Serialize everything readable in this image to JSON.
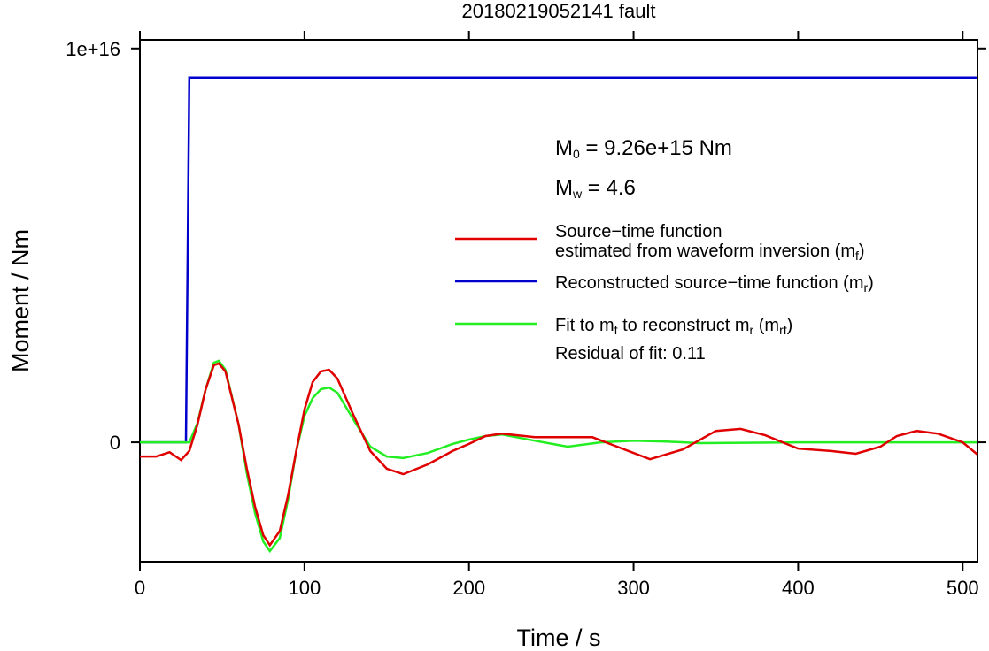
{
  "chart_data": {
    "type": "line",
    "title": "20180219052141 fault",
    "xlabel": "Time / s",
    "ylabel": "Moment / Nm",
    "xlim": [
      0,
      509
    ],
    "ylim": [
      -3030000000000000.0,
      1.022e+16
    ],
    "xticks": [
      0,
      100,
      200,
      300,
      400,
      500
    ],
    "yticks": [
      0,
      {
        "value": 1e+16,
        "label": "1e+16"
      }
    ],
    "annotations": [
      [
        "M",
        "0",
        " = 9.26e+15 Nm"
      ],
      [
        "M",
        "w",
        " = 4.6"
      ],
      [
        "Residual of fit: 0.11"
      ]
    ],
    "series": [
      {
        "name": [
          [
            "Source−time function"
          ],
          [
            "estimated from waveform inversion (m",
            "f",
            ")"
          ]
        ],
        "color": "#e00000",
        "x": [
          0,
          10,
          18,
          25,
          30,
          35,
          40,
          45,
          48,
          52,
          60,
          65,
          70,
          75,
          79,
          85,
          90,
          95,
          100,
          105,
          110,
          115,
          120,
          130,
          140,
          150,
          160,
          175,
          190,
          200,
          210,
          220,
          240,
          260,
          275,
          290,
          310,
          330,
          350,
          365,
          380,
          400,
          420,
          435,
          450,
          460,
          472,
          485,
          500,
          509
        ],
        "values": [
          -360000000000000.0,
          -360000000000000.0,
          -250000000000000.0,
          -450000000000000.0,
          -220000000000000.0,
          450000000000000.0,
          1350000000000000.0,
          1960000000000000.0,
          2000000000000000.0,
          1800000000000000.0,
          450000000000000.0,
          -670000000000000.0,
          -1640000000000000.0,
          -2360000000000000.0,
          -2610000000000000.0,
          -2250000000000000.0,
          -1350000000000000.0,
          -220000000000000.0,
          830000000000000.0,
          1530000000000000.0,
          1800000000000000.0,
          1840000000000000.0,
          1620000000000000.0,
          670000000000000.0,
          -220000000000000.0,
          -670000000000000.0,
          -810000000000000.0,
          -560000000000000.0,
          -220000000000000.0,
          -40000000000000.0,
          160000000000000.0,
          220000000000000.0,
          130000000000000.0,
          130000000000000.0,
          130000000000000.0,
          -110000000000000.0,
          -430000000000000.0,
          -180000000000000.0,
          290000000000000.0,
          340000000000000.0,
          180000000000000.0,
          -160000000000000.0,
          -220000000000000.0,
          -290000000000000.0,
          -110000000000000.0,
          160000000000000.0,
          290000000000000.0,
          220000000000000.0,
          0,
          -310000000000000.0
        ]
      },
      {
        "name": [
          [
            "Reconstructed source−time function (m",
            "r",
            ")"
          ]
        ],
        "color": "#0000cc",
        "x": [
          0,
          28,
          30,
          509
        ],
        "values": [
          0,
          0,
          9260000000000000.0,
          9260000000000000.0
        ]
      },
      {
        "name": [
          [
            "Fit to m",
            "f",
            " to reconstruct m",
            "r",
            " (m",
            "rf",
            ")"
          ]
        ],
        "color": "#22ee22",
        "x": [
          0,
          28,
          30,
          35,
          40,
          45,
          48,
          52,
          60,
          65,
          70,
          75,
          79,
          85,
          90,
          95,
          100,
          105,
          110,
          115,
          120,
          130,
          140,
          150,
          160,
          175,
          190,
          200,
          210,
          220,
          240,
          260,
          280,
          300,
          320,
          340,
          400,
          509
        ],
        "values": [
          0,
          0,
          0,
          490000000000000.0,
          1350000000000000.0,
          2020000000000000.0,
          2070000000000000.0,
          1840000000000000.0,
          450000000000000.0,
          -790000000000000.0,
          -1800000000000000.0,
          -2520000000000000.0,
          -2760000000000000.0,
          -2430000000000000.0,
          -1460000000000000.0,
          -220000000000000.0,
          670000000000000.0,
          1120000000000000.0,
          1350000000000000.0,
          1390000000000000.0,
          1260000000000000.0,
          560000000000000.0,
          -110000000000000.0,
          -360000000000000.0,
          -400000000000000.0,
          -270000000000000.0,
          -40000000000000.0,
          70000000000000.0,
          160000000000000.0,
          200000000000000.0,
          40000000000000.0,
          -110000000000000.0,
          0,
          40000000000000.0,
          20000000000000.0,
          -20000000000000.0,
          0,
          0
        ]
      }
    ]
  }
}
